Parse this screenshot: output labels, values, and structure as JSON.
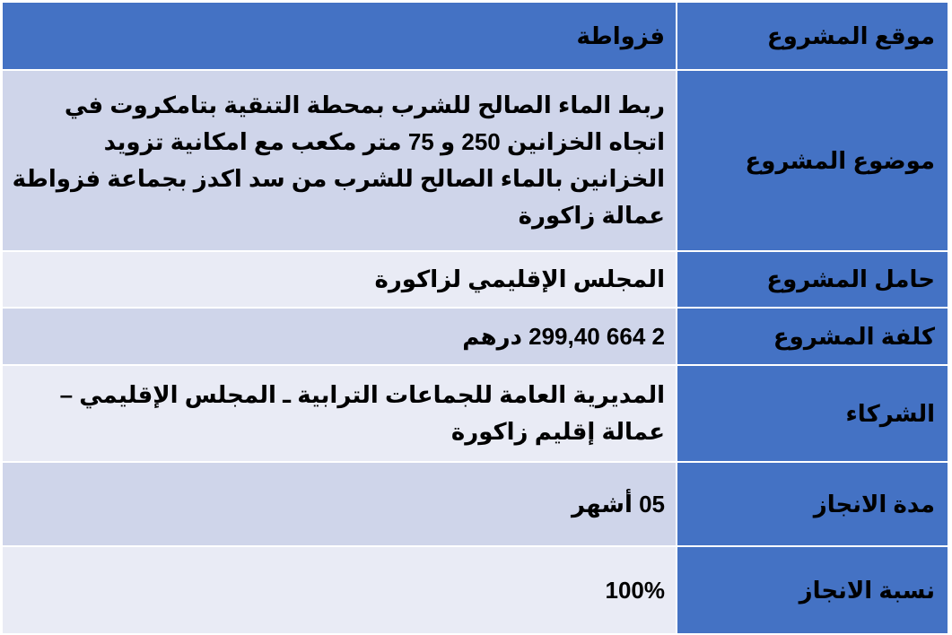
{
  "table": {
    "rows": [
      [
        "موقع المشروع",
        "فزواطة"
      ],
      [
        "موضوع المشروع",
        "ربط الماء الصالح للشرب بمحطة التنقية بتامكروت في اتجاه الخزانين 250 و 75 متر مكعب مع امكانية تزويد الخزانين بالماء الصالح للشرب من سد اكدز بجماعة فزواطة عمالة زاكورة"
      ],
      [
        "حامل المشروع",
        "المجلس الإقليمي لزاكورة"
      ],
      [
        "كلفة المشروع",
        "2 664 299,40 درهم"
      ],
      [
        "الشركاء",
        "المديرية العامة للجماعات الترابية ـ المجلس الإقليمي – عمالة إقليم زاكورة"
      ],
      [
        "مدة الانجاز",
        "05 أشهر"
      ],
      [
        "نسبة الانجاز",
        "100%"
      ]
    ]
  }
}
